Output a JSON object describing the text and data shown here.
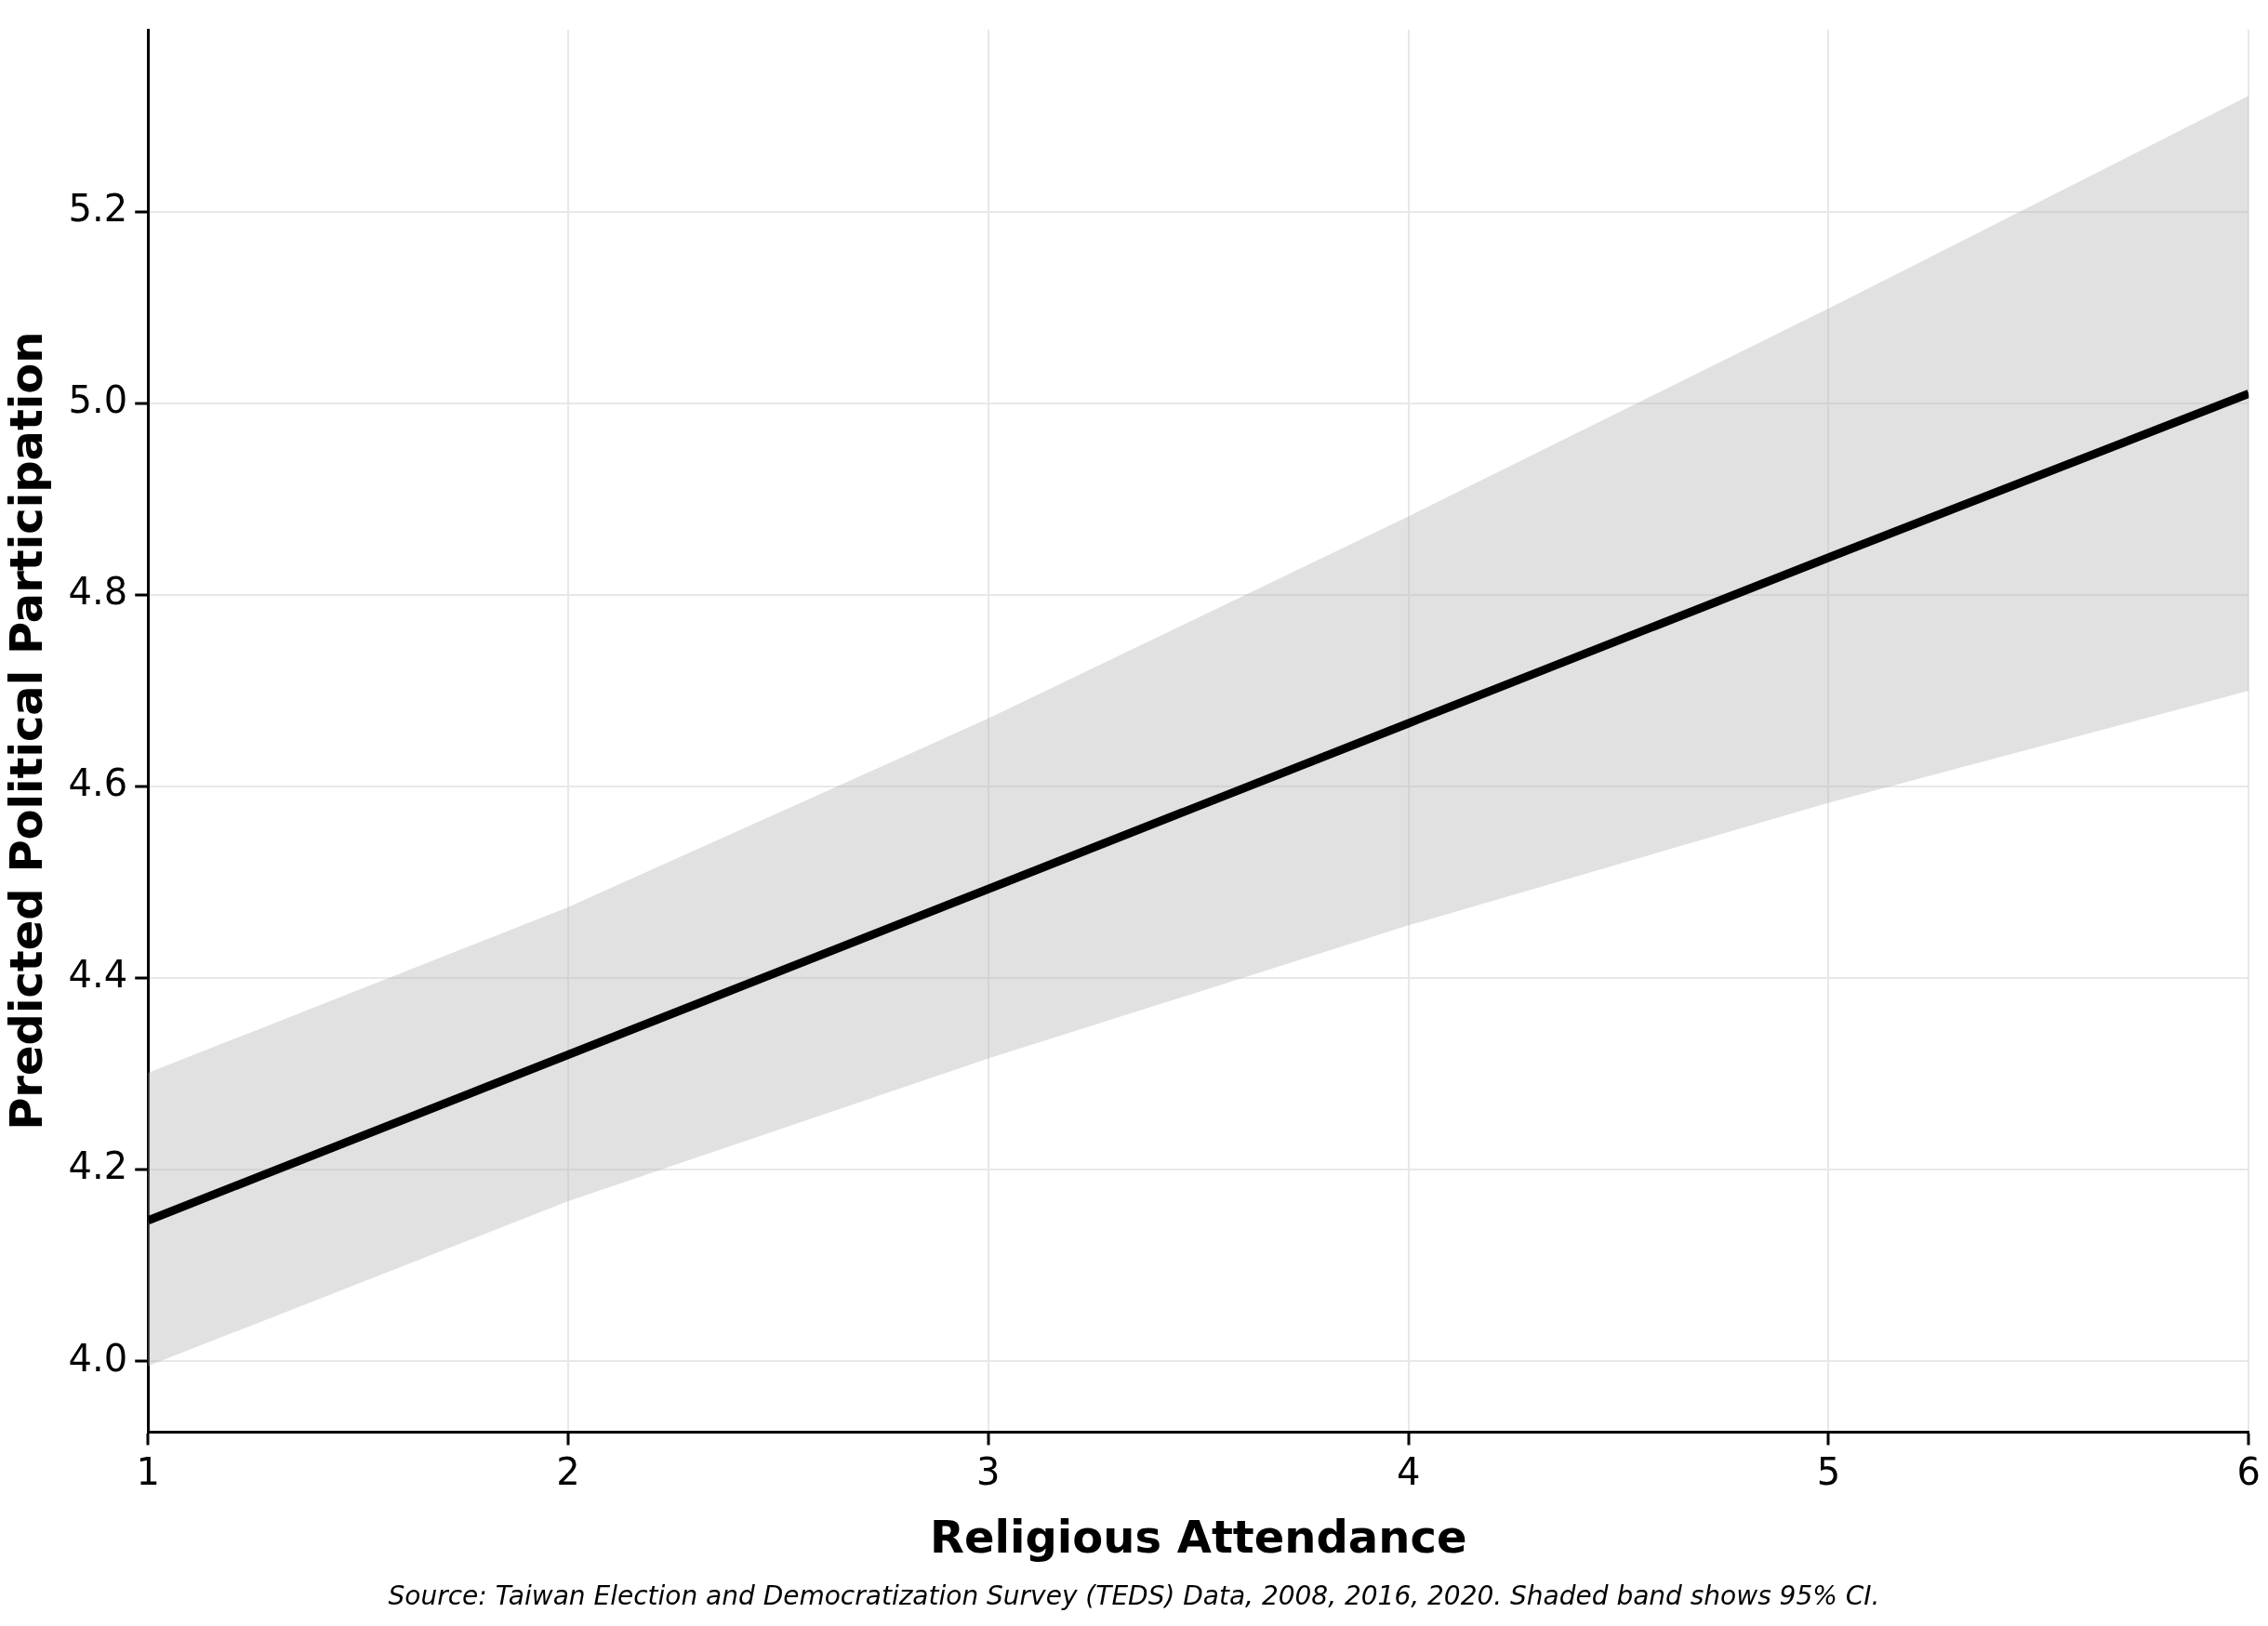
{
  "chart_data": {
    "type": "line",
    "xlabel": "Religious Attendance",
    "ylabel": "Predicted Political Participation",
    "x": [
      1,
      2,
      3,
      4,
      5,
      6
    ],
    "series": [
      {
        "color": "#000000",
        "values": [
          4.147,
          4.32,
          4.493,
          4.666,
          4.839,
          5.01
        ],
        "lower": [
          3.995,
          4.167,
          4.316,
          4.455,
          4.583,
          4.7
        ],
        "upper": [
          4.301,
          4.474,
          4.671,
          4.882,
          5.099,
          5.321
        ]
      }
    ],
    "xlim": [
      1,
      6
    ],
    "xticks": [
      1,
      2,
      3,
      4,
      5,
      6
    ],
    "ylim": [
      3.926,
      5.39
    ],
    "yticks": [
      {
        "value": 4.0,
        "label": "4.0"
      },
      {
        "value": 4.2,
        "label": "4.2"
      },
      {
        "value": 4.4,
        "label": "4.4"
      },
      {
        "value": 4.6,
        "label": "4.6"
      },
      {
        "value": 4.8,
        "label": "4.8"
      },
      {
        "value": 5.0,
        "label": "5.0"
      },
      {
        "value": 5.2,
        "label": "5.2"
      }
    ],
    "grid": true,
    "legend": false,
    "marker": "none",
    "line_style": "solid",
    "annotations": [
      "Source: Taiwan Election and Democratization Survey (TEDS) Data, 2008, 2016, 2020. Shaded band shows 95% CI."
    ]
  }
}
